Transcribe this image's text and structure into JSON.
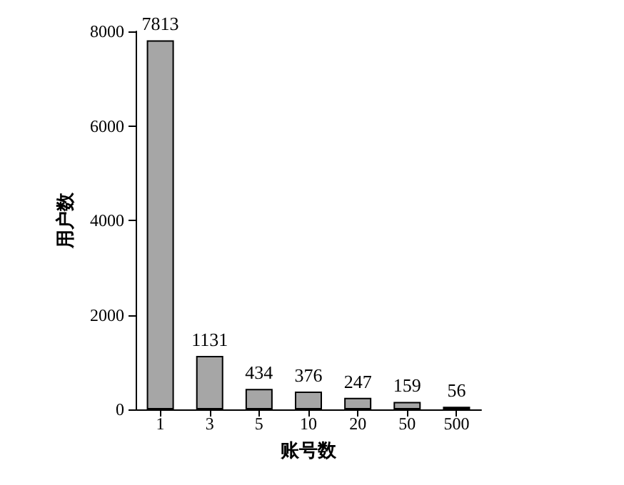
{
  "chart_data": {
    "type": "bar",
    "xlabel": "账号数",
    "ylabel": "用户数",
    "categories": [
      "1",
      "3",
      "5",
      "10",
      "20",
      "50",
      "500"
    ],
    "values": [
      7813,
      1131,
      434,
      376,
      247,
      159,
      56
    ],
    "color": "#a6a6a6",
    "ylim": [
      0,
      8000
    ],
    "yticks": [
      0,
      2000,
      4000,
      6000,
      8000
    ],
    "grid": false,
    "data_labels": true
  }
}
